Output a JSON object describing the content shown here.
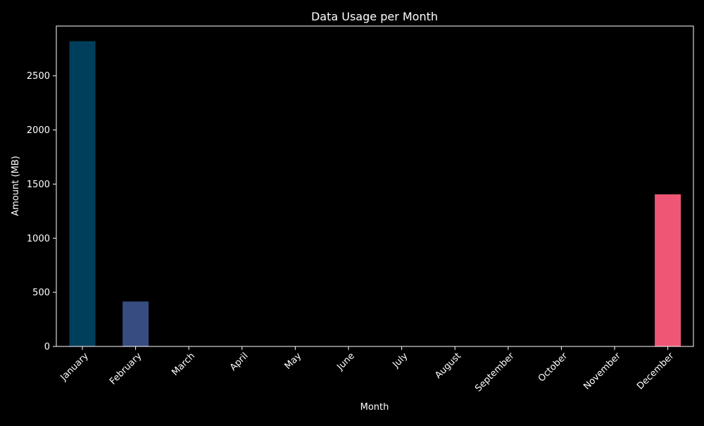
{
  "chart_data": {
    "type": "bar",
    "title": "Data Usage per Month",
    "xlabel": "Month",
    "ylabel": "Amount (MB)",
    "categories": [
      "January",
      "February",
      "March",
      "April",
      "May",
      "June",
      "July",
      "August",
      "September",
      "October",
      "November",
      "December"
    ],
    "values": [
      2820,
      415,
      0,
      0,
      0,
      0,
      0,
      0,
      0,
      0,
      0,
      1405
    ],
    "colors": [
      "#003f5c",
      "#374c80",
      "#7a5195",
      "#7a5195",
      "#7a5195",
      "#7a5195",
      "#7a5195",
      "#7a5195",
      "#7a5195",
      "#7a5195",
      "#7a5195",
      "#ef5675"
    ],
    "ylim": [
      0,
      2960
    ],
    "yticks": [
      0,
      500,
      1000,
      1500,
      2000,
      2500
    ],
    "grid": false,
    "legend": "none",
    "background": "#000000",
    "foreground": "#ffffff"
  }
}
